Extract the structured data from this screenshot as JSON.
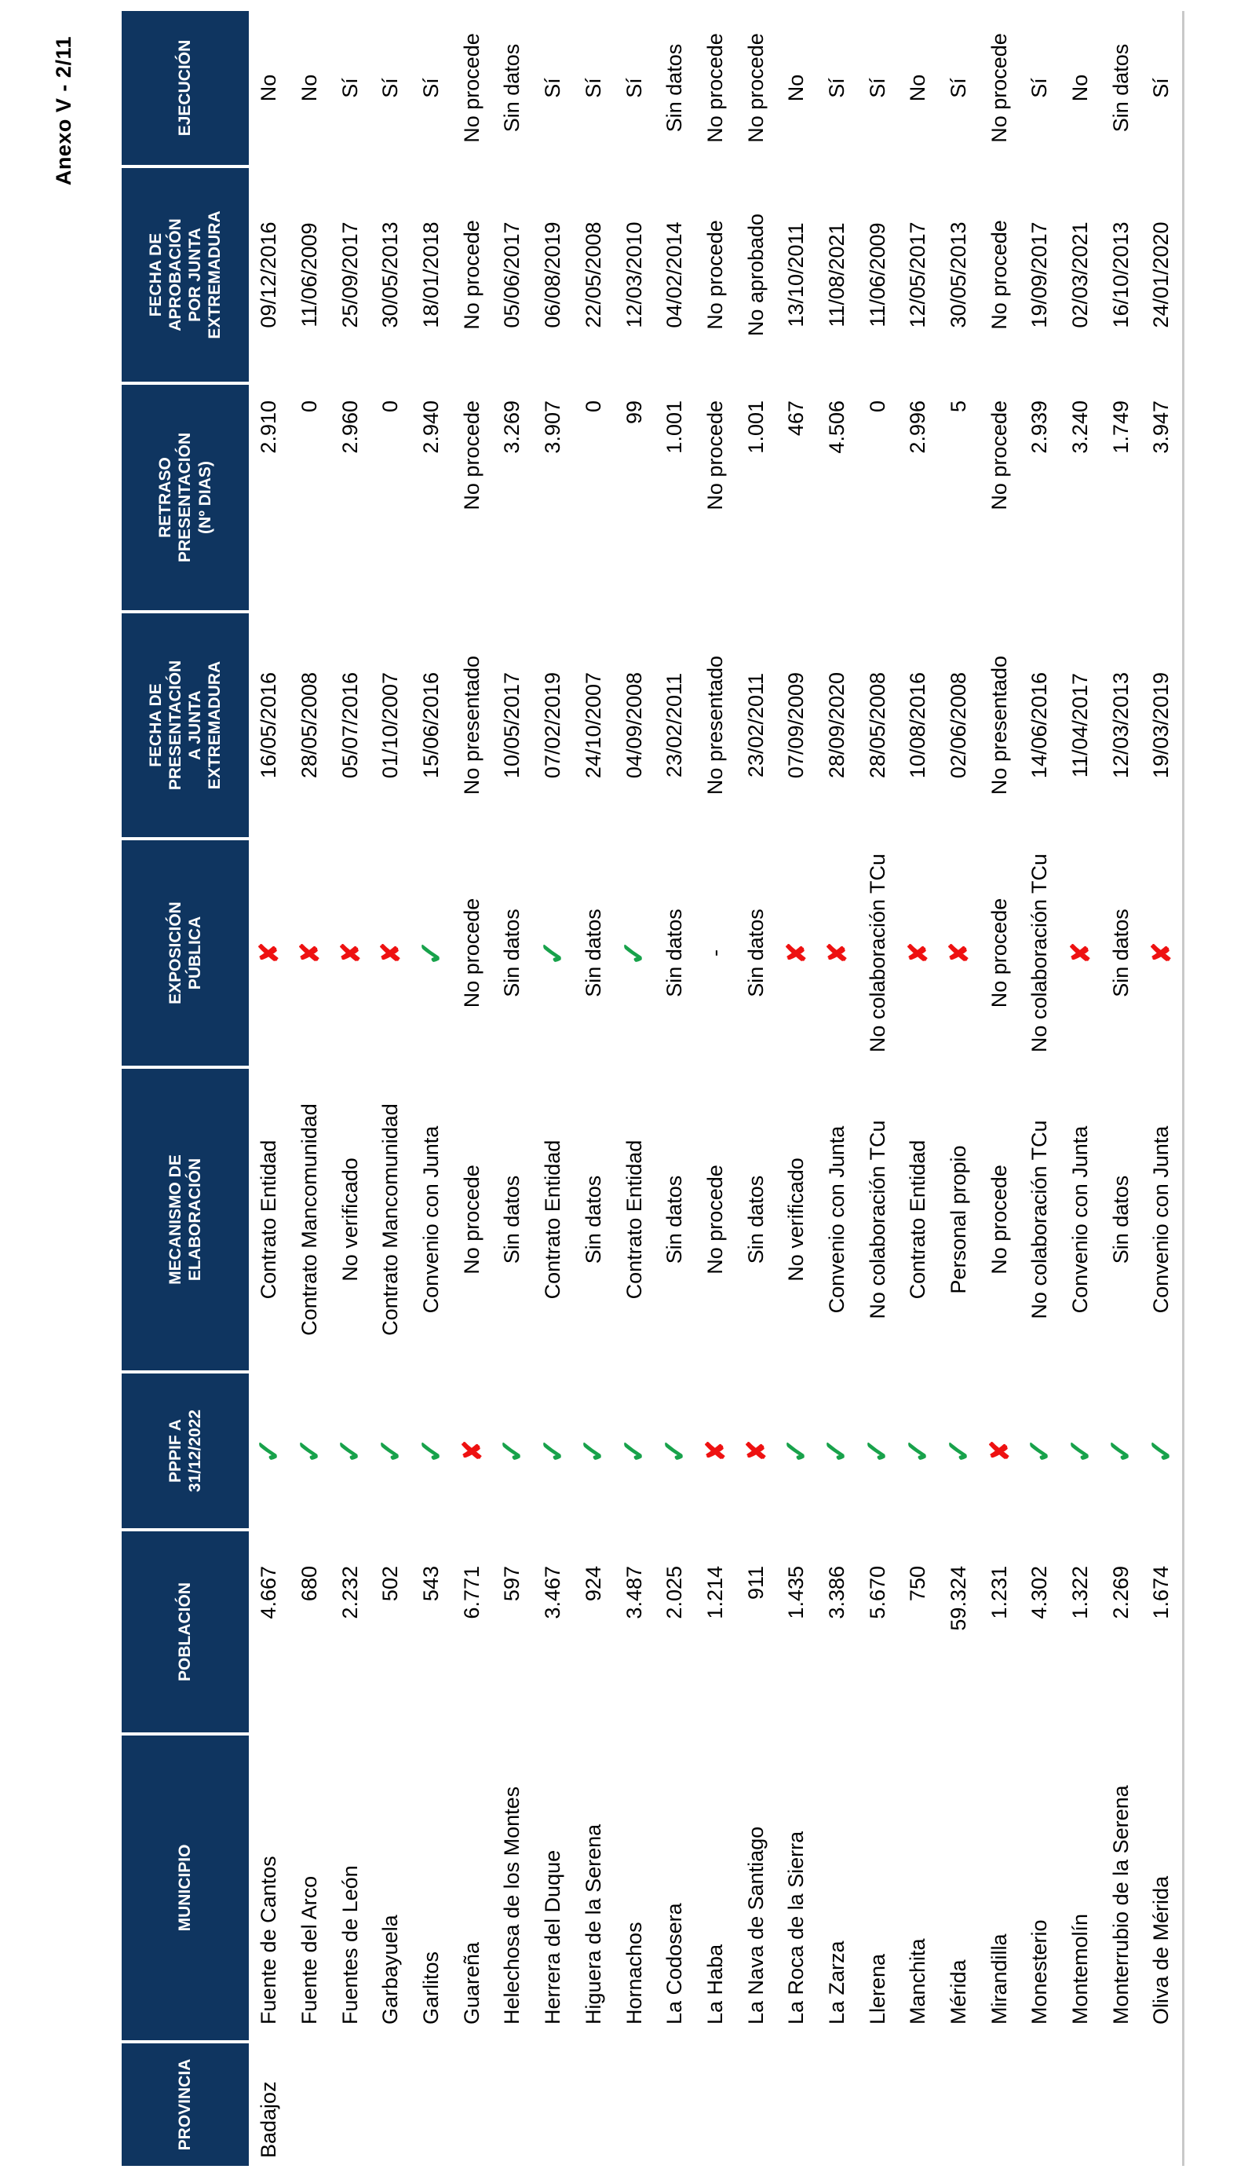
{
  "page": {
    "annex_label": "Anexo V - 2/11"
  },
  "table": {
    "colors": {
      "header_bg": "#0f3560",
      "check": "#18a24b",
      "cross": "#ee1111",
      "border": "#c9c9c9"
    },
    "headers": {
      "provincia": "PROVINCIA",
      "municipio": "MUNICIPIO",
      "poblacion": "POBLACIÓN",
      "pppif": "PPPIF A\n31/12/2022",
      "mecanismo": "MECANISMO DE\nELABORACIÓN",
      "exposicion": "EXPOSICIÓN\nPÚBLICA",
      "fecha_presentacion": "FECHA DE\nPRESENTACIÓN\nA JUNTA\nEXTREMADURA",
      "retraso": "RETRASO\nPRESENTACIÓN\n(Nº DIAS)",
      "fecha_aprobacion": "FECHA DE\nAPROBACIÓN\nPOR JUNTA\nEXTREMADURA",
      "ejecucion": "EJECUCIÓN"
    },
    "rows": [
      {
        "provincia": "Badajoz",
        "municipio": "Fuente de Cantos",
        "poblacion": "4.667",
        "pppif": "check",
        "mecanismo": "Contrato Entidad",
        "exposicion": "cross",
        "fecha_presentacion": "16/05/2016",
        "retraso": "2.910",
        "fecha_aprobacion": "09/12/2016",
        "ejecucion": "No"
      },
      {
        "provincia": "",
        "municipio": "Fuente del Arco",
        "poblacion": "680",
        "pppif": "check",
        "mecanismo": "Contrato Mancomunidad",
        "exposicion": "cross",
        "fecha_presentacion": "28/05/2008",
        "retraso": "0",
        "fecha_aprobacion": "11/06/2009",
        "ejecucion": "No"
      },
      {
        "provincia": "",
        "municipio": "Fuentes de León",
        "poblacion": "2.232",
        "pppif": "check",
        "mecanismo": "No verificado",
        "exposicion": "cross",
        "fecha_presentacion": "05/07/2016",
        "retraso": "2.960",
        "fecha_aprobacion": "25/09/2017",
        "ejecucion": "Sí"
      },
      {
        "provincia": "",
        "municipio": "Garbayuela",
        "poblacion": "502",
        "pppif": "check",
        "mecanismo": "Contrato Mancomunidad",
        "exposicion": "cross",
        "fecha_presentacion": "01/10/2007",
        "retraso": "0",
        "fecha_aprobacion": "30/05/2013",
        "ejecucion": "Sí"
      },
      {
        "provincia": "",
        "municipio": "Garlitos",
        "poblacion": "543",
        "pppif": "check",
        "mecanismo": "Convenio con Junta",
        "exposicion": "check",
        "fecha_presentacion": "15/06/2016",
        "retraso": "2.940",
        "fecha_aprobacion": "18/01/2018",
        "ejecucion": "Sí"
      },
      {
        "provincia": "",
        "municipio": "Guareña",
        "poblacion": "6.771",
        "pppif": "cross",
        "mecanismo": "No procede",
        "exposicion": "No procede",
        "fecha_presentacion": "No presentado",
        "retraso": "No procede",
        "fecha_aprobacion": "No procede",
        "ejecucion": "No procede"
      },
      {
        "provincia": "",
        "municipio": "Helechosa de los Montes",
        "poblacion": "597",
        "pppif": "check",
        "mecanismo": "Sin datos",
        "exposicion": "Sin datos",
        "fecha_presentacion": "10/05/2017",
        "retraso": "3.269",
        "fecha_aprobacion": "05/06/2017",
        "ejecucion": "Sin datos"
      },
      {
        "provincia": "",
        "municipio": "Herrera del Duque",
        "poblacion": "3.467",
        "pppif": "check",
        "mecanismo": "Contrato Entidad",
        "exposicion": "check",
        "fecha_presentacion": "07/02/2019",
        "retraso": "3.907",
        "fecha_aprobacion": "06/08/2019",
        "ejecucion": "Sí"
      },
      {
        "provincia": "",
        "municipio": "Higuera de la Serena",
        "poblacion": "924",
        "pppif": "check",
        "mecanismo": "Sin datos",
        "exposicion": "Sin datos",
        "fecha_presentacion": "24/10/2007",
        "retraso": "0",
        "fecha_aprobacion": "22/05/2008",
        "ejecucion": "Sí"
      },
      {
        "provincia": "",
        "municipio": "Hornachos",
        "poblacion": "3.487",
        "pppif": "check",
        "mecanismo": "Contrato Entidad",
        "exposicion": "check",
        "fecha_presentacion": "04/09/2008",
        "retraso": "99",
        "fecha_aprobacion": "12/03/2010",
        "ejecucion": "Sí"
      },
      {
        "provincia": "",
        "municipio": "La Codosera",
        "poblacion": "2.025",
        "pppif": "check",
        "mecanismo": "Sin datos",
        "exposicion": "Sin datos",
        "fecha_presentacion": "23/02/2011",
        "retraso": "1.001",
        "fecha_aprobacion": "04/02/2014",
        "ejecucion": "Sin datos"
      },
      {
        "provincia": "",
        "municipio": "La Haba",
        "poblacion": "1.214",
        "pppif": "cross",
        "mecanismo": "No procede",
        "exposicion": "-",
        "fecha_presentacion": "No presentado",
        "retraso": "No procede",
        "fecha_aprobacion": "No procede",
        "ejecucion": "No procede"
      },
      {
        "provincia": "",
        "municipio": "La Nava de Santiago",
        "poblacion": "911",
        "pppif": "cross",
        "mecanismo": "Sin datos",
        "exposicion": "Sin datos",
        "fecha_presentacion": "23/02/2011",
        "retraso": "1.001",
        "fecha_aprobacion": "No aprobado",
        "ejecucion": "No procede"
      },
      {
        "provincia": "",
        "municipio": "La Roca de la Sierra",
        "poblacion": "1.435",
        "pppif": "check",
        "mecanismo": "No verificado",
        "exposicion": "cross",
        "fecha_presentacion": "07/09/2009",
        "retraso": "467",
        "fecha_aprobacion": "13/10/2011",
        "ejecucion": "No"
      },
      {
        "provincia": "",
        "municipio": "La Zarza",
        "poblacion": "3.386",
        "pppif": "check",
        "mecanismo": "Convenio con Junta",
        "exposicion": "cross",
        "fecha_presentacion": "28/09/2020",
        "retraso": "4.506",
        "fecha_aprobacion": "11/08/2021",
        "ejecucion": "Sí"
      },
      {
        "provincia": "",
        "municipio": "Llerena",
        "poblacion": "5.670",
        "pppif": "check",
        "mecanismo": "No colaboración TCu",
        "exposicion": "No colaboración TCu",
        "fecha_presentacion": "28/05/2008",
        "retraso": "0",
        "fecha_aprobacion": "11/06/2009",
        "ejecucion": "Sí"
      },
      {
        "provincia": "",
        "municipio": "Manchita",
        "poblacion": "750",
        "pppif": "check",
        "mecanismo": "Contrato Entidad",
        "exposicion": "cross",
        "fecha_presentacion": "10/08/2016",
        "retraso": "2.996",
        "fecha_aprobacion": "12/05/2017",
        "ejecucion": "No"
      },
      {
        "provincia": "",
        "municipio": "Mérida",
        "poblacion": "59.324",
        "pppif": "check",
        "mecanismo": "Personal propio",
        "exposicion": "cross",
        "fecha_presentacion": "02/06/2008",
        "retraso": "5",
        "fecha_aprobacion": "30/05/2013",
        "ejecucion": "Sí"
      },
      {
        "provincia": "",
        "municipio": "Mirandilla",
        "poblacion": "1.231",
        "pppif": "cross",
        "mecanismo": "No procede",
        "exposicion": "No procede",
        "fecha_presentacion": "No presentado",
        "retraso": "No procede",
        "fecha_aprobacion": "No procede",
        "ejecucion": "No procede"
      },
      {
        "provincia": "",
        "municipio": "Monesterio",
        "poblacion": "4.302",
        "pppif": "check",
        "mecanismo": "No colaboración TCu",
        "exposicion": "No colaboración TCu",
        "fecha_presentacion": "14/06/2016",
        "retraso": "2.939",
        "fecha_aprobacion": "19/09/2017",
        "ejecucion": "Sí"
      },
      {
        "provincia": "",
        "municipio": "Montemolín",
        "poblacion": "1.322",
        "pppif": "check",
        "mecanismo": "Convenio con Junta",
        "exposicion": "cross",
        "fecha_presentacion": "11/04/2017",
        "retraso": "3.240",
        "fecha_aprobacion": "02/03/2021",
        "ejecucion": "No"
      },
      {
        "provincia": "",
        "municipio": "Monterrubio de la Serena",
        "poblacion": "2.269",
        "pppif": "check",
        "mecanismo": "Sin datos",
        "exposicion": "Sin datos",
        "fecha_presentacion": "12/03/2013",
        "retraso": "1.749",
        "fecha_aprobacion": "16/10/2013",
        "ejecucion": "Sin datos"
      },
      {
        "provincia": "",
        "municipio": "Oliva de Mérida",
        "poblacion": "1.674",
        "pppif": "check",
        "mecanismo": "Convenio con Junta",
        "exposicion": "cross",
        "fecha_presentacion": "19/03/2019",
        "retraso": "3.947",
        "fecha_aprobacion": "24/01/2020",
        "ejecucion": "Sí"
      }
    ]
  }
}
